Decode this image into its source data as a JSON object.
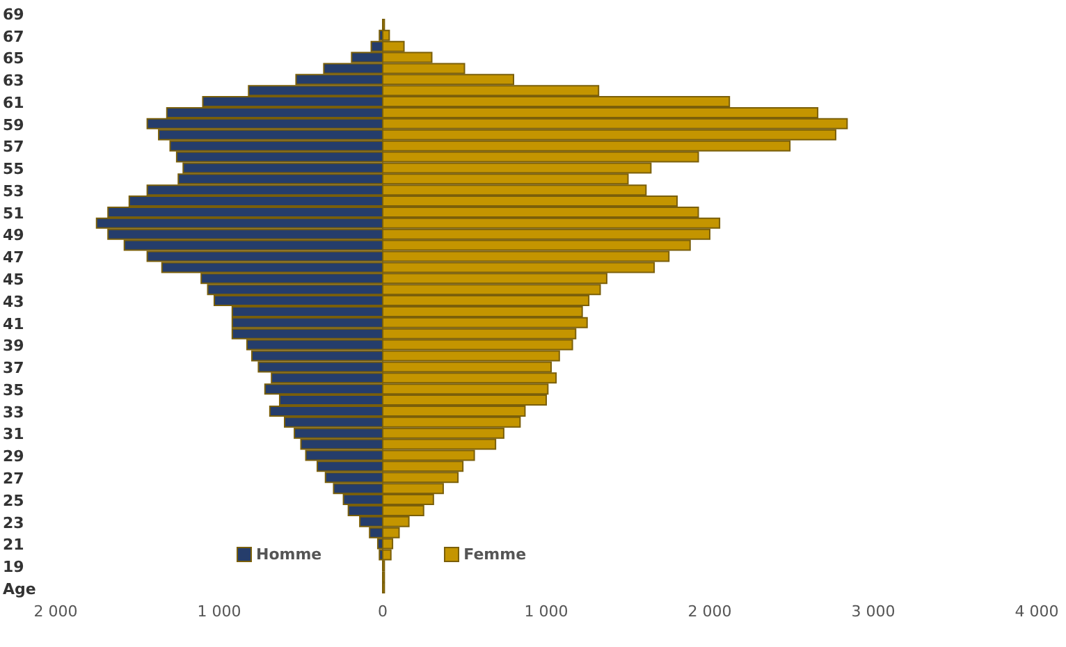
{
  "chart_data": {
    "type": "bar",
    "orientation": "horizontal",
    "categories": [
      "69",
      null,
      "67",
      null,
      "65",
      null,
      "63",
      null,
      "61",
      null,
      "59",
      null,
      "57",
      null,
      "55",
      null,
      "53",
      null,
      "51",
      null,
      "49",
      null,
      "47",
      null,
      "45",
      null,
      "43",
      null,
      "41",
      null,
      "39",
      null,
      "37",
      null,
      "35",
      null,
      "33",
      null,
      "31",
      null,
      "29",
      null,
      "27",
      null,
      "25",
      null,
      "23",
      null,
      "21",
      null,
      "19",
      null,
      "Age"
    ],
    "series": [
      {
        "name": "Homme",
        "color": "#253d6b",
        "values": [
          0,
          null,
          -20,
          -70,
          -190,
          -360,
          -530,
          -820,
          -1100,
          -1320,
          -1440,
          -1370,
          -1300,
          -1260,
          -1220,
          -1250,
          -1440,
          -1550,
          -1680,
          -1750,
          -1680,
          -1580,
          -1440,
          -1350,
          -1110,
          -1070,
          -1030,
          -920,
          -920,
          -920,
          -830,
          -800,
          -760,
          -680,
          -720,
          -630,
          -690,
          -600,
          -540,
          -500,
          -470,
          -400,
          -350,
          -300,
          -240,
          -210,
          -140,
          -80,
          -30,
          -20,
          null,
          null,
          null
        ]
      },
      {
        "name": "Femme",
        "color": "#c49500",
        "values": [
          0,
          10,
          40,
          130,
          300,
          500,
          800,
          1320,
          2120,
          2660,
          2840,
          2770,
          2490,
          1930,
          1640,
          1500,
          1610,
          1800,
          1930,
          2060,
          2000,
          1880,
          1750,
          1660,
          1370,
          1330,
          1260,
          1220,
          1250,
          1180,
          1160,
          1080,
          1030,
          1060,
          1010,
          1000,
          870,
          840,
          740,
          690,
          560,
          490,
          460,
          370,
          310,
          250,
          160,
          100,
          60,
          50,
          10,
          10,
          10
        ]
      }
    ],
    "stacked": true,
    "xlim": [
      -2000,
      4000
    ],
    "xticks": [
      {
        "value": -2000,
        "label": "2 000"
      },
      {
        "value": -1000,
        "label": "1 000"
      },
      0,
      {
        "value": 1000,
        "label": "1 000"
      },
      {
        "value": 2000,
        "label": "2 000"
      },
      {
        "value": 3000,
        "label": "3 000"
      },
      {
        "value": 4000,
        "label": "4 000"
      }
    ],
    "grid": false,
    "legend": "bottom"
  }
}
